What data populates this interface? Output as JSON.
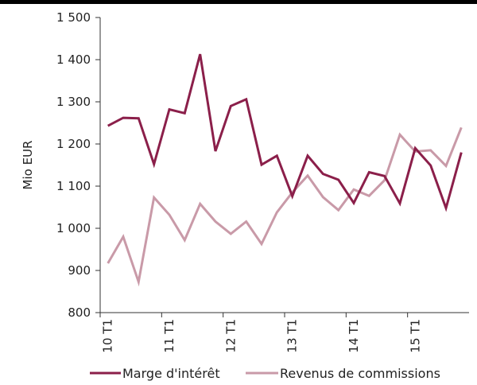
{
  "chart_data": {
    "type": "line",
    "ylabel": "Mio EUR",
    "ylim": [
      800,
      1500
    ],
    "yticks": [
      800,
      900,
      1000,
      1100,
      1200,
      1300,
      1400,
      1500
    ],
    "ytick_labels": [
      "800",
      "900",
      "1 000",
      "1 100",
      "1 200",
      "1 300",
      "1 400",
      "1 500"
    ],
    "x": [
      "10 T1",
      "10 T2",
      "10 T3",
      "10 T4",
      "11 T1",
      "11 T2",
      "11 T3",
      "11 T4",
      "12 T1",
      "12 T2",
      "12 T3",
      "12 T4",
      "13 T1",
      "13 T2",
      "13 T3",
      "13 T4",
      "14 T1",
      "14 T2",
      "14 T3",
      "14 T4",
      "15 T1",
      "15 T2",
      "15 T3",
      "15 T4"
    ],
    "xtick_labels": [
      "10 T1",
      "11 T1",
      "12 T1",
      "13 T1",
      "14 T1",
      "15 T1"
    ],
    "legend_position": "bottom",
    "grid": false,
    "series": [
      {
        "name": "Marge d'intérêt",
        "color": "#8b1f4a",
        "values": [
          1243,
          1262,
          1261,
          1152,
          1282,
          1273,
          1413,
          1183,
          1290,
          1306,
          1151,
          1172,
          1076,
          1172,
          1129,
          1115,
          1060,
          1133,
          1124,
          1059,
          1190,
          1149,
          1048,
          1180
        ]
      },
      {
        "name": "Revenus de commissions",
        "color": "#c99aa8",
        "values": [
          917,
          980,
          873,
          1073,
          1032,
          972,
          1058,
          1016,
          987,
          1016,
          963,
          1038,
          1085,
          1125,
          1074,
          1043,
          1092,
          1077,
          1114,
          1222,
          1182,
          1185,
          1148,
          1239
        ]
      }
    ]
  }
}
